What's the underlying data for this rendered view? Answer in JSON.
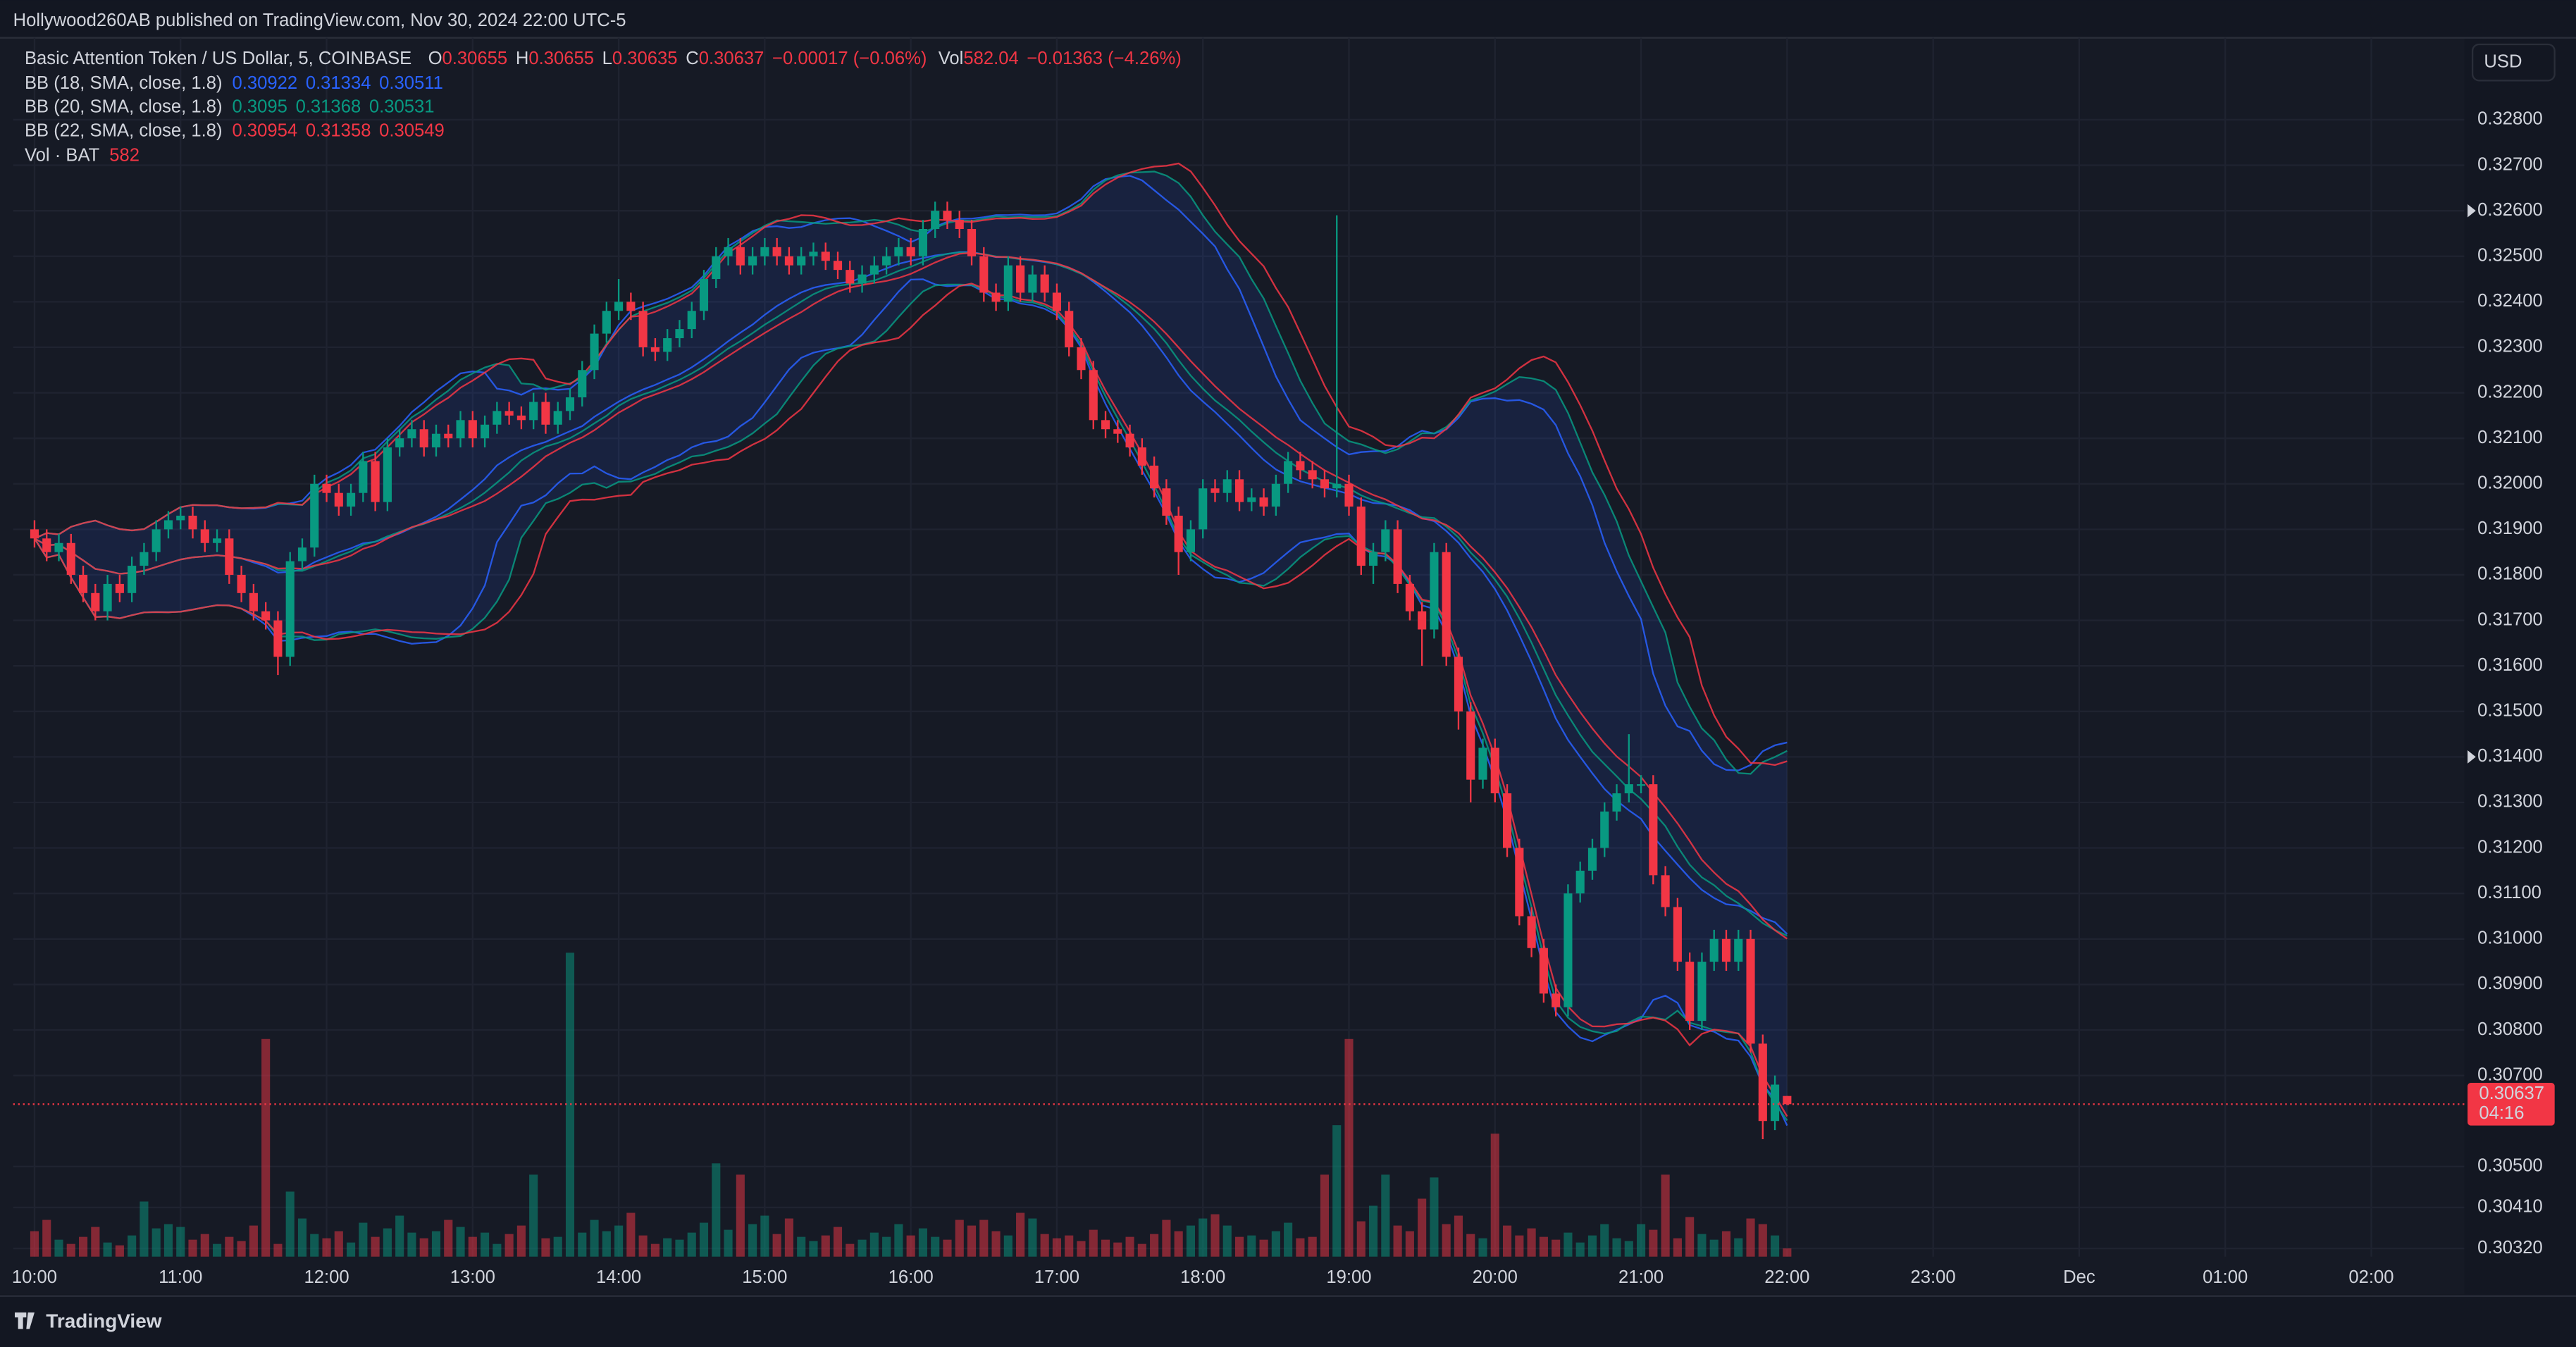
{
  "header": {
    "published": "Hollywood260AB published on TradingView.com, Nov 30, 2024 22:00 UTC-5"
  },
  "footer": {
    "brand": "TradingView"
  },
  "chart_data": {
    "type": "candlestick",
    "title": "Basic Attention Token / US Dollar, 5, COINBASE",
    "currency": "USD",
    "ohlc_labels": [
      "O",
      "H",
      "L",
      "C"
    ],
    "change": "−0.00017 (−0.06%)",
    "vol_label": "Vol",
    "vol_change": "−0.01363 (−4.26%)",
    "countdown": "04:16",
    "up_color": "#089981",
    "down_color": "#f23645",
    "grid": true,
    "candles": {
      "open": [
        0.319,
        0.3188,
        0.3185,
        0.3187,
        0.318,
        0.3176,
        0.3172,
        0.3178,
        0.3176,
        0.3182,
        0.3185,
        0.319,
        0.3192,
        0.3193,
        0.319,
        0.3187,
        0.3188,
        0.318,
        0.3176,
        0.3172,
        0.317,
        0.3162,
        0.3183,
        0.3186,
        0.32,
        0.3198,
        0.3195,
        0.3198,
        0.3205,
        0.3196,
        0.3208,
        0.321,
        0.3212,
        0.3208,
        0.3211,
        0.321,
        0.3214,
        0.321,
        0.3213,
        0.3216,
        0.3215,
        0.3214,
        0.3218,
        0.3213,
        0.3216,
        0.3219,
        0.3225,
        0.3233,
        0.3238,
        0.324,
        0.3238,
        0.323,
        0.3229,
        0.3232,
        0.3234,
        0.3238,
        0.3245,
        0.325,
        0.3252,
        0.3248,
        0.325,
        0.3252,
        0.325,
        0.3248,
        0.325,
        0.3251,
        0.3249,
        0.3247,
        0.3244,
        0.3246,
        0.3248,
        0.325,
        0.3252,
        0.325,
        0.3256,
        0.326,
        0.3258,
        0.3256,
        0.325,
        0.3242,
        0.324,
        0.3248,
        0.3242,
        0.3246,
        0.3242,
        0.3238,
        0.323,
        0.3225,
        0.3214,
        0.3212,
        0.3211,
        0.3208,
        0.3204,
        0.3199,
        0.3193,
        0.3185,
        0.319,
        0.3199,
        0.3198,
        0.3201,
        0.3196,
        0.3197,
        0.3195,
        0.32,
        0.3205,
        0.3203,
        0.3201,
        0.3199,
        0.32,
        0.3195,
        0.3182,
        0.3185,
        0.319,
        0.3178,
        0.3172,
        0.3168,
        0.3185,
        0.3162,
        0.315,
        0.3135,
        0.3142,
        0.3132,
        0.312,
        0.3105,
        0.3098,
        0.3088,
        0.3085,
        0.311,
        0.3115,
        0.312,
        0.3128,
        0.3132,
        0.3134,
        0.3134,
        0.3114,
        0.3107,
        0.3095,
        0.3082,
        0.3095,
        0.31,
        0.3095,
        0.31,
        0.3077,
        0.306,
        0.30655
      ],
      "high": [
        0.3192,
        0.319,
        0.3189,
        0.3189,
        0.3182,
        0.3178,
        0.318,
        0.318,
        0.3184,
        0.3187,
        0.3192,
        0.3194,
        0.3195,
        0.3195,
        0.3192,
        0.319,
        0.319,
        0.3182,
        0.3178,
        0.3174,
        0.3172,
        0.3185,
        0.3188,
        0.3202,
        0.3202,
        0.32,
        0.32,
        0.3207,
        0.3207,
        0.321,
        0.3212,
        0.3214,
        0.3214,
        0.3213,
        0.3213,
        0.3216,
        0.3216,
        0.3215,
        0.3218,
        0.3218,
        0.3217,
        0.322,
        0.322,
        0.3218,
        0.3221,
        0.3227,
        0.3235,
        0.324,
        0.3245,
        0.3242,
        0.324,
        0.3232,
        0.3234,
        0.3236,
        0.324,
        0.3247,
        0.3252,
        0.3254,
        0.3254,
        0.3252,
        0.3254,
        0.3254,
        0.3252,
        0.3252,
        0.3253,
        0.3253,
        0.3251,
        0.3249,
        0.3248,
        0.325,
        0.3252,
        0.3254,
        0.3254,
        0.3258,
        0.3262,
        0.3262,
        0.326,
        0.3258,
        0.3252,
        0.3244,
        0.325,
        0.325,
        0.3248,
        0.3248,
        0.3244,
        0.324,
        0.3232,
        0.3227,
        0.3216,
        0.3214,
        0.3213,
        0.321,
        0.3206,
        0.3201,
        0.3195,
        0.3192,
        0.3201,
        0.3201,
        0.3203,
        0.3203,
        0.3199,
        0.3199,
        0.3202,
        0.3207,
        0.3207,
        0.3205,
        0.3203,
        0.3259,
        0.3202,
        0.3197,
        0.3187,
        0.3192,
        0.3192,
        0.318,
        0.3174,
        0.3187,
        0.3187,
        0.3164,
        0.3152,
        0.3144,
        0.3144,
        0.3134,
        0.3122,
        0.3107,
        0.31,
        0.309,
        0.3112,
        0.3117,
        0.3122,
        0.313,
        0.3134,
        0.3145,
        0.3136,
        0.3136,
        0.3116,
        0.3109,
        0.3097,
        0.3097,
        0.3102,
        0.3102,
        0.3102,
        0.3102,
        0.3079,
        0.307,
        0.30655
      ],
      "low": [
        0.3186,
        0.3183,
        0.3183,
        0.3178,
        0.3174,
        0.317,
        0.317,
        0.3174,
        0.3174,
        0.318,
        0.3183,
        0.3188,
        0.319,
        0.3188,
        0.3185,
        0.3185,
        0.3178,
        0.3174,
        0.317,
        0.3168,
        0.3158,
        0.316,
        0.3181,
        0.3184,
        0.3196,
        0.3193,
        0.3193,
        0.3196,
        0.3194,
        0.3194,
        0.3206,
        0.3208,
        0.3206,
        0.3206,
        0.3208,
        0.3208,
        0.3208,
        0.3208,
        0.3211,
        0.3213,
        0.3212,
        0.3212,
        0.3211,
        0.3211,
        0.3214,
        0.3217,
        0.3223,
        0.3231,
        0.3236,
        0.3236,
        0.3228,
        0.3227,
        0.3227,
        0.323,
        0.3232,
        0.3236,
        0.3243,
        0.3248,
        0.3246,
        0.3246,
        0.3248,
        0.3248,
        0.3246,
        0.3246,
        0.3248,
        0.3247,
        0.3245,
        0.3242,
        0.3242,
        0.3244,
        0.3246,
        0.3248,
        0.3248,
        0.3248,
        0.3254,
        0.3256,
        0.3254,
        0.3248,
        0.324,
        0.3238,
        0.3238,
        0.324,
        0.324,
        0.324,
        0.3236,
        0.3228,
        0.3223,
        0.3212,
        0.321,
        0.3209,
        0.3206,
        0.3202,
        0.3197,
        0.3191,
        0.318,
        0.3183,
        0.3188,
        0.3196,
        0.3196,
        0.3194,
        0.3194,
        0.3193,
        0.3193,
        0.3198,
        0.3201,
        0.3199,
        0.3197,
        0.3197,
        0.3193,
        0.318,
        0.3178,
        0.3183,
        0.3176,
        0.317,
        0.316,
        0.3166,
        0.316,
        0.3146,
        0.313,
        0.3133,
        0.313,
        0.3118,
        0.3103,
        0.3096,
        0.3086,
        0.3083,
        0.3083,
        0.3108,
        0.3113,
        0.3118,
        0.3126,
        0.313,
        0.3132,
        0.3112,
        0.3105,
        0.3093,
        0.308,
        0.308,
        0.3093,
        0.3093,
        0.3093,
        0.3075,
        0.3056,
        0.3058,
        0.30635
      ],
      "close": [
        0.3188,
        0.3185,
        0.3187,
        0.318,
        0.3176,
        0.3172,
        0.3178,
        0.3176,
        0.3182,
        0.3185,
        0.319,
        0.3192,
        0.3193,
        0.319,
        0.3187,
        0.3188,
        0.318,
        0.3176,
        0.3172,
        0.317,
        0.3162,
        0.3183,
        0.3186,
        0.32,
        0.3198,
        0.3195,
        0.3198,
        0.3205,
        0.3196,
        0.3208,
        0.321,
        0.3212,
        0.3208,
        0.3211,
        0.321,
        0.3214,
        0.321,
        0.3213,
        0.3216,
        0.3215,
        0.3214,
        0.3218,
        0.3213,
        0.3216,
        0.3219,
        0.3225,
        0.3233,
        0.3238,
        0.324,
        0.3238,
        0.323,
        0.3229,
        0.3232,
        0.3234,
        0.3238,
        0.3245,
        0.325,
        0.3252,
        0.3248,
        0.325,
        0.3252,
        0.325,
        0.3248,
        0.325,
        0.3251,
        0.3249,
        0.3247,
        0.3244,
        0.3246,
        0.3248,
        0.325,
        0.3252,
        0.325,
        0.3256,
        0.326,
        0.3258,
        0.3256,
        0.325,
        0.3242,
        0.324,
        0.3248,
        0.3242,
        0.3246,
        0.3242,
        0.3238,
        0.323,
        0.3225,
        0.3214,
        0.3212,
        0.3211,
        0.3208,
        0.3204,
        0.3199,
        0.3193,
        0.3185,
        0.319,
        0.3199,
        0.3198,
        0.3201,
        0.3196,
        0.3197,
        0.3195,
        0.32,
        0.3205,
        0.3203,
        0.3201,
        0.3199,
        0.32,
        0.3195,
        0.3182,
        0.3185,
        0.319,
        0.3178,
        0.3172,
        0.3168,
        0.3185,
        0.3162,
        0.315,
        0.3135,
        0.3142,
        0.3132,
        0.312,
        0.3105,
        0.3098,
        0.3088,
        0.3085,
        0.311,
        0.3115,
        0.312,
        0.3128,
        0.3132,
        0.3134,
        0.3134,
        0.3114,
        0.3107,
        0.3095,
        0.3082,
        0.3095,
        0.31,
        0.3095,
        0.31,
        0.3077,
        0.306,
        0.3068,
        0.30637
      ],
      "volume": [
        1800,
        2600,
        1200,
        900,
        1400,
        2100,
        1000,
        800,
        1500,
        3900,
        2000,
        2300,
        2100,
        1200,
        1600,
        900,
        1400,
        1100,
        2200,
        15400,
        900,
        4600,
        2700,
        1600,
        1300,
        1800,
        1000,
        2400,
        1400,
        2000,
        2900,
        1700,
        1300,
        1800,
        2600,
        2100,
        1400,
        1700,
        900,
        1600,
        2200,
        5800,
        1300,
        1400,
        21500,
        1700,
        2600,
        1800,
        2200,
        3100,
        1500,
        900,
        1300,
        1200,
        1700,
        2400,
        6600,
        1900,
        5800,
        2300,
        2900,
        1600,
        2700,
        1400,
        1100,
        1500,
        2100,
        900,
        1200,
        1700,
        1400,
        2300,
        1500,
        2000,
        1400,
        1200,
        2600,
        2200,
        2600,
        1800,
        1500,
        3100,
        2700,
        1600,
        1300,
        1500,
        1100,
        1900,
        1200,
        1000,
        1400,
        900,
        1600,
        2600,
        1800,
        2200,
        2700,
        3000,
        2200,
        1400,
        1500,
        1200,
        1800,
        2400,
        1300,
        1400,
        5800,
        9300,
        15400,
        2500,
        3600,
        5800,
        2200,
        1800,
        4100,
        5600,
        2300,
        2900,
        1600,
        1300,
        8700,
        2200,
        1500,
        2000,
        1400,
        1200,
        1700,
        1000,
        1500,
        2300,
        1300,
        1100,
        2300,
        1900,
        5800,
        1300,
        2800,
        1600,
        1200,
        1800,
        1300,
        2700,
        2300,
        1500,
        582.04
      ]
    },
    "indicators": [
      {
        "label": "BB (18, SMA, close, 1.8)",
        "period": 18,
        "mult": 1.8,
        "color": "#2962ff",
        "values": [
          0.30922,
          0.31334,
          0.30511
        ]
      },
      {
        "label": "BB (20, SMA, close, 1.8)",
        "period": 20,
        "mult": 1.8,
        "color": "#089981",
        "values": [
          0.3095,
          0.31368,
          0.30531
        ]
      },
      {
        "label": "BB (22, SMA, close, 1.8)",
        "period": 22,
        "mult": 1.8,
        "color": "#f23645",
        "values": [
          0.30954,
          0.31358,
          0.30549
        ]
      }
    ],
    "vol_indicator": {
      "label": "Vol · BAT",
      "value": "582"
    },
    "ylim": [
      0.30302,
      0.3298
    ],
    "yticks": [
      {
        "value": 0.328,
        "label": "0.32800"
      },
      {
        "value": 0.327,
        "label": "0.32700"
      },
      {
        "value": 0.326,
        "label": "0.32600",
        "flag": true
      },
      {
        "value": 0.325,
        "label": "0.32500"
      },
      {
        "value": 0.324,
        "label": "0.32400"
      },
      {
        "value": 0.323,
        "label": "0.32300"
      },
      {
        "value": 0.322,
        "label": "0.32200"
      },
      {
        "value": 0.321,
        "label": "0.32100"
      },
      {
        "value": 0.32,
        "label": "0.32000"
      },
      {
        "value": 0.319,
        "label": "0.31900"
      },
      {
        "value": 0.318,
        "label": "0.31800"
      },
      {
        "value": 0.317,
        "label": "0.31700"
      },
      {
        "value": 0.316,
        "label": "0.31600"
      },
      {
        "value": 0.315,
        "label": "0.31500"
      },
      {
        "value": 0.314,
        "label": "0.31400",
        "flag": true
      },
      {
        "value": 0.313,
        "label": "0.31300"
      },
      {
        "value": 0.312,
        "label": "0.31200"
      },
      {
        "value": 0.311,
        "label": "0.31100"
      },
      {
        "value": 0.31,
        "label": "0.31000"
      },
      {
        "value": 0.309,
        "label": "0.30900"
      },
      {
        "value": 0.308,
        "label": "0.30800"
      },
      {
        "value": 0.307,
        "label": "0.30700"
      },
      {
        "value": 0.305,
        "label": "0.30500"
      },
      {
        "value": 0.3041,
        "label": "0.30410"
      },
      {
        "value": 0.3032,
        "label": "0.30320"
      }
    ],
    "xticks": [
      "10:00",
      "11:00",
      "12:00",
      "13:00",
      "14:00",
      "15:00",
      "16:00",
      "17:00",
      "18:00",
      "19:00",
      "20:00",
      "21:00",
      "22:00",
      "23:00",
      "Dec",
      "01:00",
      "02:00"
    ]
  }
}
